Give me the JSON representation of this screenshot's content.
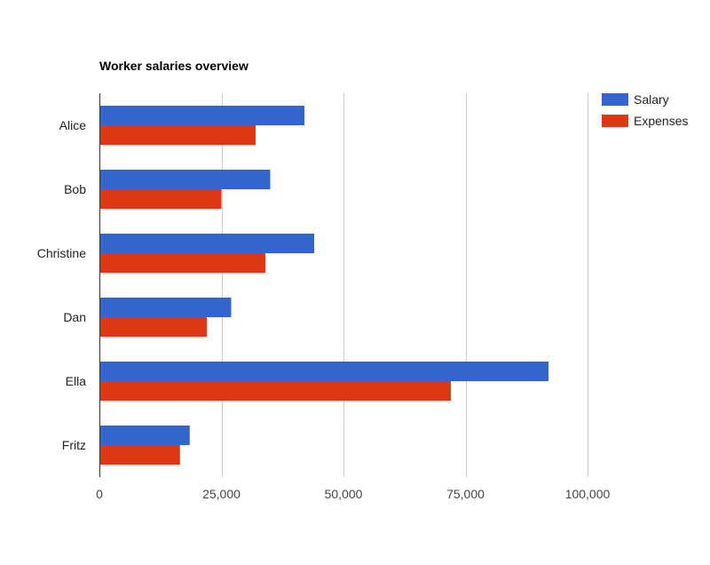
{
  "chart_data": {
    "type": "bar",
    "orientation": "horizontal",
    "title": "Worker salaries overview",
    "categories": [
      "Alice",
      "Bob",
      "Christine",
      "Dan",
      "Ella",
      "Fritz"
    ],
    "series": [
      {
        "name": "Salary",
        "color": "#3366cc",
        "values": [
          42000,
          35000,
          44000,
          27000,
          92000,
          18500
        ]
      },
      {
        "name": "Expenses",
        "color": "#dc3912",
        "values": [
          32000,
          25000,
          34000,
          22000,
          72000,
          16500
        ]
      }
    ],
    "xlim": [
      0,
      100000
    ],
    "xticks": [
      0,
      25000,
      50000,
      75000,
      100000
    ],
    "xtick_labels": [
      "0",
      "25,000",
      "50,000",
      "75,000",
      "100,000"
    ],
    "grid": true,
    "legend_position": "top-right"
  }
}
